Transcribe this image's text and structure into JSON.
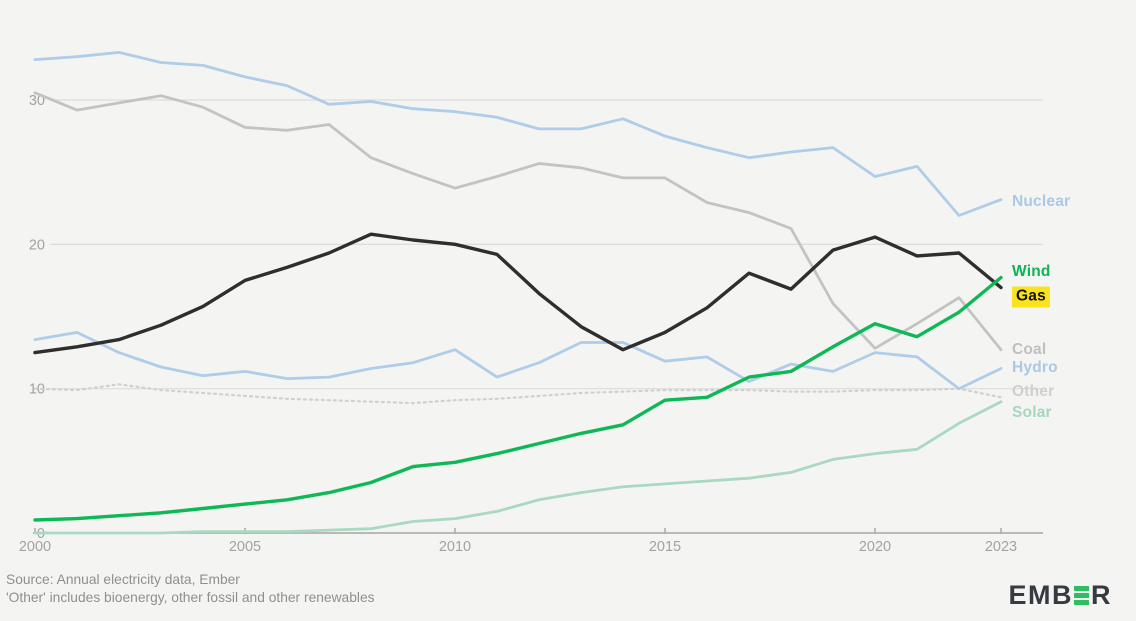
{
  "chart_data": {
    "type": "line",
    "title": "",
    "xlabel": "",
    "ylabel": "",
    "x": [
      2000,
      2001,
      2002,
      2003,
      2004,
      2005,
      2006,
      2007,
      2008,
      2009,
      2010,
      2011,
      2012,
      2013,
      2014,
      2015,
      2016,
      2017,
      2018,
      2019,
      2020,
      2021,
      2022,
      2023
    ],
    "xticks": [
      2000,
      2005,
      2010,
      2015,
      2020,
      2023
    ],
    "yticks": [
      0,
      10,
      20,
      30
    ],
    "ylim": [
      0,
      34.5
    ],
    "grid": "horizontal",
    "legend_position": "line-end-labels",
    "series": [
      {
        "name": "Other",
        "color": "#d0d0ce",
        "label_color": "#cfcfcd",
        "width": 2.2,
        "dashed": true,
        "label_offset": -5,
        "values": [
          10.0,
          9.9,
          10.3,
          9.9,
          9.7,
          9.5,
          9.3,
          9.2,
          9.1,
          9.0,
          9.2,
          9.3,
          9.5,
          9.7,
          9.8,
          9.9,
          9.9,
          9.9,
          9.8,
          9.8,
          9.9,
          9.9,
          10.0,
          9.4
        ]
      },
      {
        "name": "Solar",
        "color": "#a9d9c0",
        "label_color": "#a4d7bc",
        "width": 2.8,
        "dashed": false,
        "label_offset": 11,
        "values": [
          0.0,
          0.0,
          0.0,
          0.0,
          0.1,
          0.1,
          0.1,
          0.2,
          0.3,
          0.8,
          1.0,
          1.5,
          2.3,
          2.8,
          3.2,
          3.4,
          3.6,
          3.8,
          4.2,
          5.1,
          5.5,
          5.8,
          7.6,
          9.1
        ]
      },
      {
        "name": "Coal",
        "color": "#c3c3c1",
        "label_color": "#c0c0be",
        "width": 2.8,
        "dashed": false,
        "label_offset": 0,
        "values": [
          30.5,
          29.3,
          29.8,
          30.3,
          29.5,
          28.1,
          27.9,
          28.3,
          26.0,
          24.9,
          23.9,
          24.7,
          25.6,
          25.3,
          24.6,
          24.6,
          22.9,
          22.2,
          21.1,
          15.9,
          12.8,
          14.5,
          16.3,
          12.7
        ]
      },
      {
        "name": "Nuclear",
        "color": "#afcce9",
        "label_color": "#a9c9e8",
        "width": 2.8,
        "dashed": false,
        "label_offset": 2,
        "values": [
          32.8,
          33.0,
          33.3,
          32.6,
          32.4,
          31.6,
          31.0,
          29.7,
          29.9,
          29.4,
          29.2,
          28.8,
          28.0,
          28.0,
          28.7,
          27.5,
          26.7,
          26.0,
          26.4,
          26.7,
          24.7,
          25.4,
          22.0,
          23.1
        ]
      },
      {
        "name": "Hydro",
        "color": "#afcce9",
        "label_color": "#a9c9e8",
        "width": 2.8,
        "dashed": false,
        "label_offset": 0,
        "values": [
          13.4,
          13.9,
          12.5,
          11.5,
          10.9,
          11.2,
          10.7,
          10.8,
          11.4,
          11.8,
          12.7,
          10.8,
          11.8,
          13.2,
          13.2,
          11.9,
          12.2,
          10.5,
          11.7,
          11.2,
          12.5,
          12.2,
          10.0,
          11.4
        ]
      },
      {
        "name": "Gas",
        "color": "#2e2e2e",
        "label_color": "#111111",
        "label_bg": "#f9e31c",
        "highlighted": true,
        "width": 3.4,
        "dashed": false,
        "label_offset": 9,
        "values": [
          12.5,
          12.9,
          13.4,
          14.4,
          15.7,
          17.5,
          18.4,
          19.4,
          20.7,
          20.3,
          20.0,
          19.3,
          16.6,
          14.3,
          12.7,
          13.9,
          15.6,
          18.0,
          16.9,
          19.6,
          20.5,
          19.2,
          19.4,
          17.0
        ]
      },
      {
        "name": "Wind",
        "color": "#0fb857",
        "label_color": "#0db454",
        "width": 3.4,
        "dashed": false,
        "label_offset": -6,
        "values": [
          0.9,
          1.0,
          1.2,
          1.4,
          1.7,
          2.0,
          2.3,
          2.8,
          3.5,
          4.6,
          4.9,
          5.5,
          6.2,
          6.9,
          7.5,
          9.2,
          9.4,
          10.8,
          11.2,
          12.9,
          14.5,
          13.6,
          15.3,
          17.7
        ]
      }
    ]
  },
  "footer": {
    "source_line": "Source: Annual electricity data, Ember",
    "note_line": "'Other' includes bioenergy, other fossil and other renewables"
  },
  "logo": {
    "prefix": "EMB",
    "suffix": "R",
    "green": "#2dbd63",
    "text_color": "#363a41"
  },
  "axis_colors": {
    "gridline": "#dcdcda",
    "baseline": "#b9b9b7",
    "tick": "#aeaeac",
    "tick_text": "#a2a2a0"
  }
}
